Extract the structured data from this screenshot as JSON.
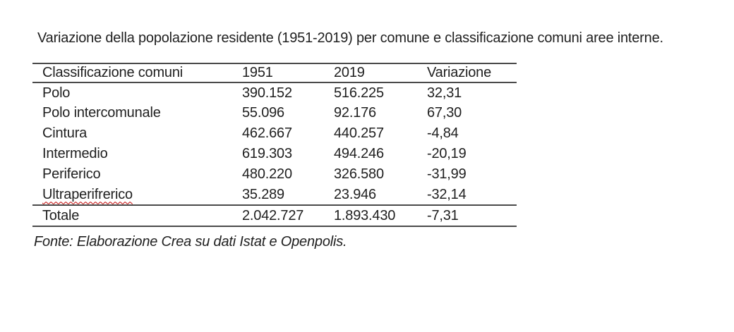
{
  "page": {
    "title": "Variazione della popolazione residente (1951-2019) per comune e classificazione comuni aree interne.",
    "source_note": "Fonte: Elaborazione Crea su dati Istat e Openpolis."
  },
  "table": {
    "columns": [
      "Classificazione comuni",
      "1951",
      "2019",
      "Variazione"
    ],
    "rows": [
      {
        "label": "Polo",
        "v1951": "390.152",
        "v2019": "516.225",
        "variazione": "32,31"
      },
      {
        "label": "Polo intercomunale",
        "v1951": "55.096",
        "v2019": "92.176",
        "variazione": "67,30"
      },
      {
        "label": "Cintura",
        "v1951": "462.667",
        "v2019": "440.257",
        "variazione": "-4,84"
      },
      {
        "label": "Intermedio",
        "v1951": "619.303",
        "v2019": "494.246",
        "variazione": "-20,19"
      },
      {
        "label": "Periferico",
        "v1951": "480.220",
        "v2019": "326.580",
        "variazione": "-31,99"
      },
      {
        "label": "Ultraperifrerico",
        "v1951": "35.289",
        "v2019": "23.946",
        "variazione": "-32,14",
        "spellcheck_underline": true
      }
    ],
    "total_row": {
      "label": "Totale",
      "v1951": "2.042.727",
      "v2019": "1.893.430",
      "variazione": "-7,31"
    }
  },
  "colors": {
    "background": "#ffffff",
    "text": "#1f1f1f",
    "table_rule": "#4a4a4a",
    "spellcheck_underline": "#c00000"
  },
  "chart_data": {
    "type": "table",
    "title": "Variazione della popolazione residente (1951-2019) per comune e classificazione comuni aree interne.",
    "columns": [
      "Classificazione comuni",
      "1951",
      "2019",
      "Variazione"
    ],
    "rows": [
      [
        "Polo",
        390152,
        516225,
        32.31
      ],
      [
        "Polo intercomunale",
        55096,
        92176,
        67.3
      ],
      [
        "Cintura",
        462667,
        440257,
        -4.84
      ],
      [
        "Intermedio",
        619303,
        494246,
        -20.19
      ],
      [
        "Periferico",
        480220,
        326580,
        -31.99
      ],
      [
        "Ultraperifrerico",
        35289,
        23946,
        -32.14
      ],
      [
        "Totale",
        2042727,
        1893430,
        -7.31
      ]
    ],
    "source": "Fonte: Elaborazione Crea su dati Istat e Openpolis."
  }
}
